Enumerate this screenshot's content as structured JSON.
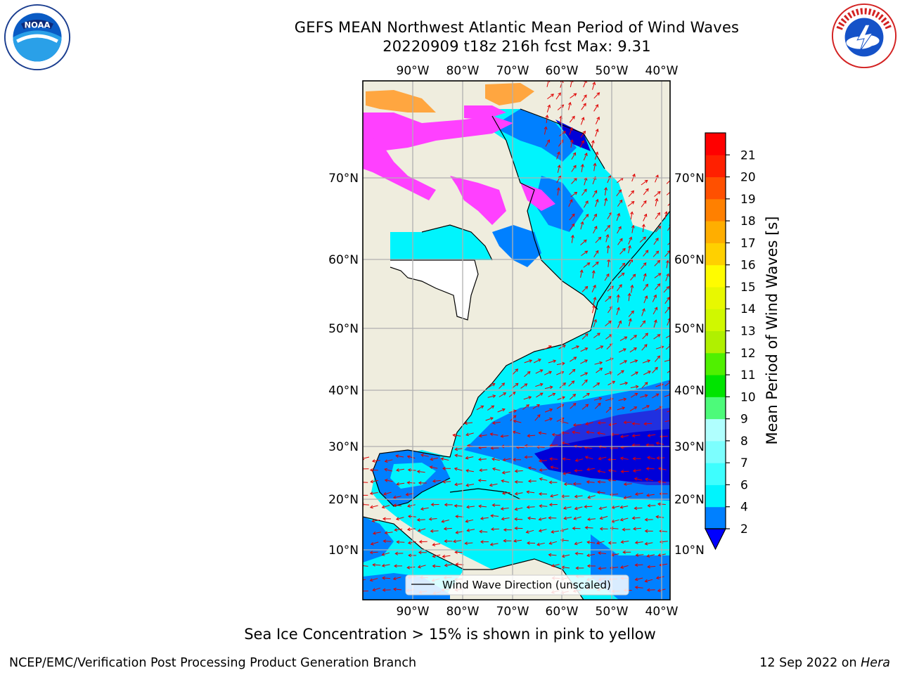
{
  "header": {
    "title_line1": "GEFS MEAN Northwest Atlantic Mean Period of Wind Waves",
    "title_line2": "20220909 t18z 216h fcst   Max: 9.31"
  },
  "logos": {
    "left": "noaa-logo",
    "right": "national-weather-service-logo"
  },
  "map": {
    "lon_labels": [
      "90°W",
      "80°W",
      "70°W",
      "60°W",
      "50°W",
      "40°W"
    ],
    "lat_labels": [
      "70°N",
      "60°N",
      "50°N",
      "40°N",
      "30°N",
      "20°N",
      "10°N"
    ],
    "legend_label": "Wind Wave Direction (unscaled)",
    "colors": {
      "land": "#efedde",
      "cyan": "#00f4fd",
      "light_cyan": "#60fffe",
      "blue": "#0080ff",
      "dark_blue": "#0000d8",
      "ice_pink": "#ff40ff",
      "ice_orange": "#ffa640",
      "arrow": "#e00000",
      "grid": "#b0b0b0"
    }
  },
  "colorbar": {
    "label": "Mean Period of Wind Waves [s]",
    "ticks": [
      "2",
      "4",
      "6",
      "7",
      "8",
      "9",
      "10",
      "11",
      "12",
      "13",
      "14",
      "15",
      "16",
      "17",
      "18",
      "19",
      "20",
      "21"
    ],
    "under_color": "#0000ff",
    "colors": [
      "#0080ff",
      "#00f4fd",
      "#3efefe",
      "#7cfefe",
      "#b0fffe",
      "#4dfa7a",
      "#00e400",
      "#50f000",
      "#b0f000",
      "#d0f800",
      "#e8f800",
      "#fffc00",
      "#ffd000",
      "#ffae00",
      "#ff8000",
      "#ff5000",
      "#ff2000",
      "#ff0000"
    ]
  },
  "note": "Sea Ice Concentration > 15% is shown in pink to yellow",
  "footer": {
    "left": "NCEP/EMC/Verification Post Processing Product Generation Branch",
    "date": "12 Sep 2022 on ",
    "host": "Hera"
  }
}
